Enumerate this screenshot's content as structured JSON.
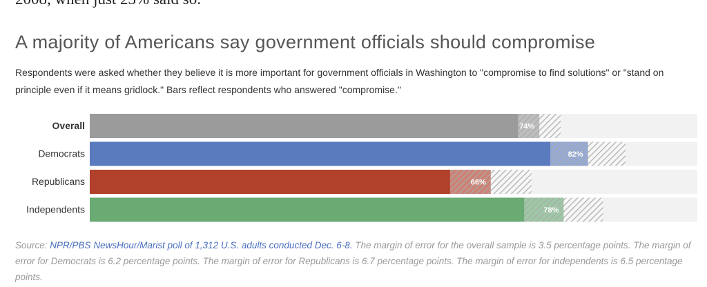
{
  "intro_text": "2008, when just 23% said so.",
  "chart_data": {
    "type": "bar",
    "orientation": "horizontal",
    "title": "A majority of Americans say government officials should compromise",
    "subtitle": "Respondents were asked whether they believe it is more important for government officials in Washington to \"compromise to find solutions\" or \"stand on principle even if it means gridlock.\" Bars reflect respondents who answered \"compromise.\"",
    "categories": [
      "Overall",
      "Democrats",
      "Republicans",
      "Independents"
    ],
    "values": [
      74,
      82,
      66,
      78
    ],
    "value_labels": [
      "74%",
      "82%",
      "66%",
      "78%"
    ],
    "colors": [
      "#9b9b9b",
      "#5b7bbf",
      "#b1412b",
      "#6aab74"
    ],
    "errors": [
      3.5,
      6.2,
      6.7,
      6.5
    ],
    "xlim": [
      0,
      100
    ],
    "source": {
      "label": "Source:",
      "link": "NPR/PBS NewsHour/Marist poll of 1,312 U.S. adults conducted Dec. 6-8.",
      "note": "The margin of error for the overall sample is 3.5 percentage points. The margin of error for Democrats is 6.2 percentage points. The margin of error for Republicans is 6.7 percentage points. The margin of error for independents is 6.5 percentage points."
    }
  }
}
